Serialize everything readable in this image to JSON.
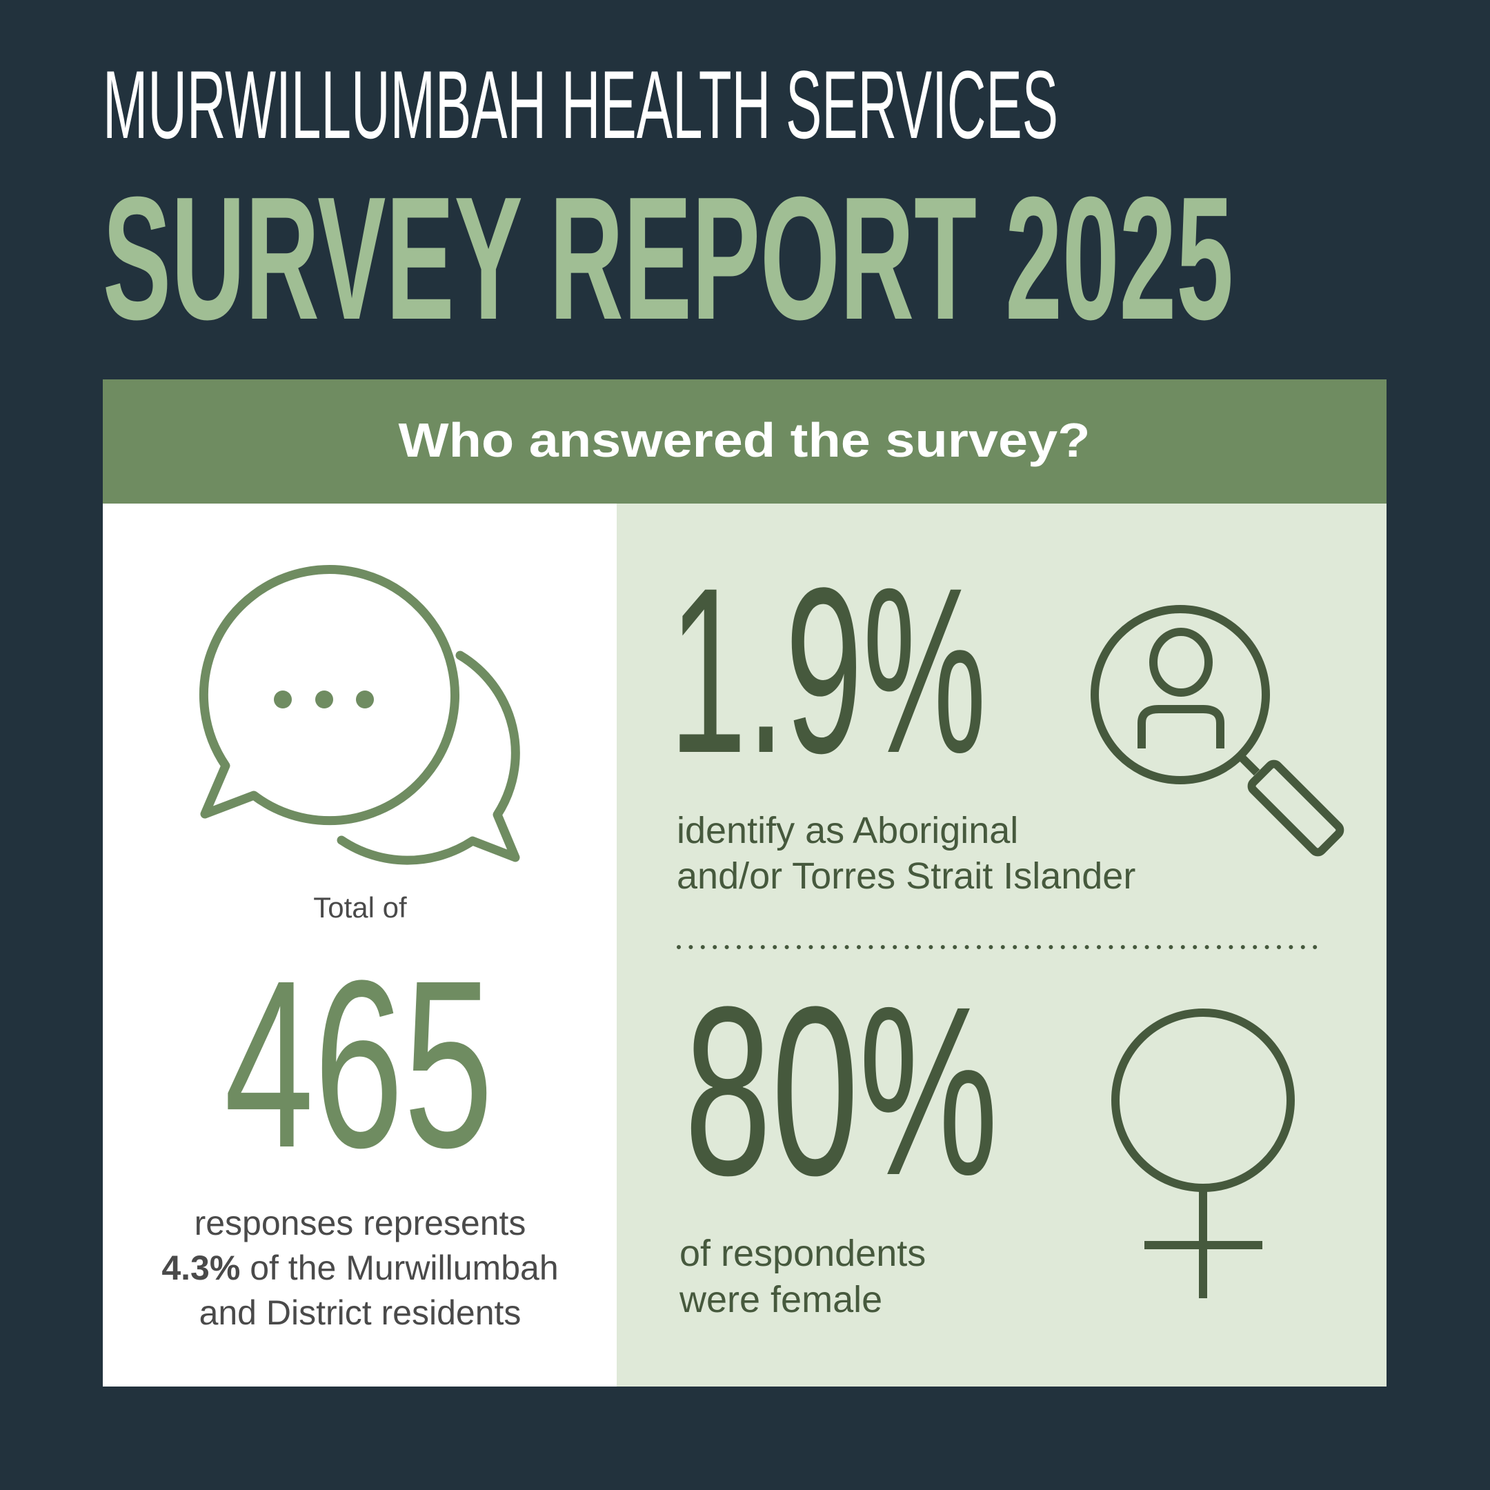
{
  "colors": {
    "background": "#22323d",
    "title_accent": "#a0be94",
    "header_bar": "#6f8c61",
    "panel_light": "#dfe9d8",
    "dark_green": "#46593d",
    "text_grey": "#4a4a4a"
  },
  "header": {
    "line1": "MURWILLUMBAH HEALTH SERVICES",
    "line2": "SURVEY REPORT 2025"
  },
  "section": {
    "title": "Who answered the survey?"
  },
  "responses": {
    "icon": "chat-bubbles-icon",
    "prefix": "Total of",
    "count": "465",
    "line1": "responses represents",
    "line2_bold": "4.3%",
    "line2_rest": " of the Murwillumbah",
    "line3": "and District residents"
  },
  "aboriginal": {
    "icon": "person-search-icon",
    "value": "1.9%",
    "line1": "identify as Aboriginal",
    "line2": "and/or Torres Strait Islander"
  },
  "female": {
    "icon": "female-symbol-icon",
    "value": "80%",
    "line1": "of respondents",
    "line2": "were female"
  }
}
